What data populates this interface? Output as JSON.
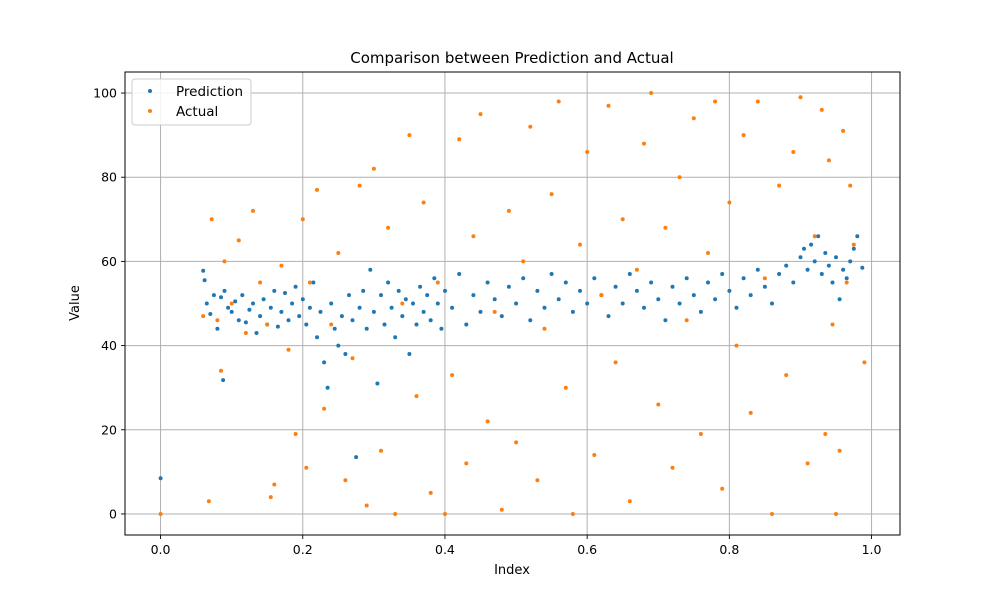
{
  "chart_data": {
    "type": "scatter",
    "title": "Comparison between Prediction and Actual",
    "xlabel": "Index",
    "ylabel": "Value",
    "xlim": [
      -0.05,
      1.04
    ],
    "ylim": [
      -5,
      105
    ],
    "xticks": [
      0.0,
      0.2,
      0.4,
      0.6,
      0.8,
      1.0
    ],
    "xtick_labels": [
      "0.0",
      "0.2",
      "0.4",
      "0.6",
      "0.8",
      "1.0"
    ],
    "yticks": [
      0,
      20,
      40,
      60,
      80,
      100
    ],
    "ytick_labels": [
      "0",
      "20",
      "40",
      "60",
      "80",
      "100"
    ],
    "grid": true,
    "legend": {
      "placement": "upper-left"
    },
    "series": [
      {
        "name": "Prediction",
        "color": "#1f77b4",
        "points": [
          [
            0.0,
            8.5
          ],
          [
            0.06,
            57.8
          ],
          [
            0.062,
            55.5
          ],
          [
            0.065,
            50.0
          ],
          [
            0.07,
            47.5
          ],
          [
            0.075,
            52.0
          ],
          [
            0.08,
            44.0
          ],
          [
            0.085,
            51.5
          ],
          [
            0.088,
            31.8
          ],
          [
            0.09,
            53.0
          ],
          [
            0.095,
            49.0
          ],
          [
            0.1,
            48.0
          ],
          [
            0.105,
            50.5
          ],
          [
            0.11,
            46.0
          ],
          [
            0.115,
            52.0
          ],
          [
            0.12,
            45.5
          ],
          [
            0.125,
            48.5
          ],
          [
            0.13,
            50.0
          ],
          [
            0.135,
            43.0
          ],
          [
            0.14,
            47.0
          ],
          [
            0.145,
            51.0
          ],
          [
            0.15,
            45.0
          ],
          [
            0.155,
            49.0
          ],
          [
            0.16,
            53.0
          ],
          [
            0.165,
            44.5
          ],
          [
            0.17,
            48.0
          ],
          [
            0.175,
            52.5
          ],
          [
            0.18,
            46.0
          ],
          [
            0.185,
            50.0
          ],
          [
            0.19,
            54.0
          ],
          [
            0.195,
            47.0
          ],
          [
            0.2,
            51.0
          ],
          [
            0.205,
            45.0
          ],
          [
            0.21,
            49.0
          ],
          [
            0.215,
            55.0
          ],
          [
            0.22,
            42.0
          ],
          [
            0.225,
            48.0
          ],
          [
            0.23,
            36.0
          ],
          [
            0.235,
            30.0
          ],
          [
            0.24,
            50.0
          ],
          [
            0.245,
            44.0
          ],
          [
            0.25,
            40.0
          ],
          [
            0.255,
            47.0
          ],
          [
            0.26,
            38.0
          ],
          [
            0.265,
            52.0
          ],
          [
            0.27,
            46.0
          ],
          [
            0.275,
            13.5
          ],
          [
            0.28,
            49.0
          ],
          [
            0.285,
            53.0
          ],
          [
            0.29,
            44.0
          ],
          [
            0.295,
            58.0
          ],
          [
            0.3,
            48.0
          ],
          [
            0.305,
            31.0
          ],
          [
            0.31,
            52.0
          ],
          [
            0.315,
            45.0
          ],
          [
            0.32,
            55.0
          ],
          [
            0.325,
            49.0
          ],
          [
            0.33,
            42.0
          ],
          [
            0.335,
            53.0
          ],
          [
            0.34,
            47.0
          ],
          [
            0.345,
            51.0
          ],
          [
            0.35,
            38.0
          ],
          [
            0.355,
            50.0
          ],
          [
            0.36,
            45.0
          ],
          [
            0.365,
            54.0
          ],
          [
            0.37,
            48.0
          ],
          [
            0.375,
            52.0
          ],
          [
            0.38,
            46.0
          ],
          [
            0.385,
            56.0
          ],
          [
            0.39,
            50.0
          ],
          [
            0.395,
            44.0
          ],
          [
            0.4,
            53.0
          ],
          [
            0.41,
            49.0
          ],
          [
            0.42,
            57.0
          ],
          [
            0.43,
            45.0
          ],
          [
            0.44,
            52.0
          ],
          [
            0.45,
            48.0
          ],
          [
            0.46,
            55.0
          ],
          [
            0.47,
            51.0
          ],
          [
            0.48,
            47.0
          ],
          [
            0.49,
            54.0
          ],
          [
            0.5,
            50.0
          ],
          [
            0.51,
            56.0
          ],
          [
            0.52,
            46.0
          ],
          [
            0.53,
            53.0
          ],
          [
            0.54,
            49.0
          ],
          [
            0.55,
            57.0
          ],
          [
            0.56,
            51.0
          ],
          [
            0.57,
            55.0
          ],
          [
            0.58,
            48.0
          ],
          [
            0.59,
            53.0
          ],
          [
            0.6,
            50.0
          ],
          [
            0.61,
            56.0
          ],
          [
            0.62,
            52.0
          ],
          [
            0.63,
            47.0
          ],
          [
            0.64,
            54.0
          ],
          [
            0.65,
            50.0
          ],
          [
            0.66,
            57.0
          ],
          [
            0.67,
            53.0
          ],
          [
            0.68,
            49.0
          ],
          [
            0.69,
            55.0
          ],
          [
            0.7,
            51.0
          ],
          [
            0.71,
            46.0
          ],
          [
            0.72,
            54.0
          ],
          [
            0.73,
            50.0
          ],
          [
            0.74,
            56.0
          ],
          [
            0.75,
            52.0
          ],
          [
            0.76,
            48.0
          ],
          [
            0.77,
            55.0
          ],
          [
            0.78,
            51.0
          ],
          [
            0.79,
            57.0
          ],
          [
            0.8,
            53.0
          ],
          [
            0.81,
            49.0
          ],
          [
            0.82,
            56.0
          ],
          [
            0.83,
            52.0
          ],
          [
            0.84,
            58.0
          ],
          [
            0.85,
            54.0
          ],
          [
            0.86,
            50.0
          ],
          [
            0.87,
            57.0
          ],
          [
            0.88,
            59.0
          ],
          [
            0.89,
            55.0
          ],
          [
            0.9,
            61.0
          ],
          [
            0.905,
            63.0
          ],
          [
            0.91,
            58.0
          ],
          [
            0.915,
            64.0
          ],
          [
            0.92,
            60.0
          ],
          [
            0.925,
            66.0
          ],
          [
            0.93,
            57.0
          ],
          [
            0.935,
            62.0
          ],
          [
            0.94,
            59.0
          ],
          [
            0.945,
            55.0
          ],
          [
            0.95,
            61.0
          ],
          [
            0.955,
            51.0
          ],
          [
            0.96,
            58.0
          ],
          [
            0.965,
            56.0
          ],
          [
            0.97,
            60.0
          ],
          [
            0.975,
            63.0
          ],
          [
            0.98,
            66.0
          ],
          [
            0.987,
            58.5
          ]
        ]
      },
      {
        "name": "Actual",
        "color": "#ff7f0e",
        "points": [
          [
            0.0,
            0.0
          ],
          [
            0.06,
            47.0
          ],
          [
            0.068,
            3.0
          ],
          [
            0.072,
            70.0
          ],
          [
            0.08,
            46.0
          ],
          [
            0.085,
            34.0
          ],
          [
            0.09,
            60.0
          ],
          [
            0.1,
            50.0
          ],
          [
            0.11,
            65.0
          ],
          [
            0.12,
            43.0
          ],
          [
            0.13,
            72.0
          ],
          [
            0.14,
            55.0
          ],
          [
            0.15,
            45.0
          ],
          [
            0.155,
            4.0
          ],
          [
            0.16,
            7.0
          ],
          [
            0.17,
            59.0
          ],
          [
            0.18,
            39.0
          ],
          [
            0.19,
            19.0
          ],
          [
            0.2,
            70.0
          ],
          [
            0.205,
            11.0
          ],
          [
            0.21,
            55.0
          ],
          [
            0.22,
            77.0
          ],
          [
            0.23,
            25.0
          ],
          [
            0.24,
            45.0
          ],
          [
            0.25,
            62.0
          ],
          [
            0.26,
            8.0
          ],
          [
            0.27,
            37.0
          ],
          [
            0.28,
            78.0
          ],
          [
            0.29,
            2.0
          ],
          [
            0.3,
            82.0
          ],
          [
            0.31,
            15.0
          ],
          [
            0.32,
            68.0
          ],
          [
            0.33,
            0.0
          ],
          [
            0.34,
            50.0
          ],
          [
            0.35,
            90.0
          ],
          [
            0.36,
            28.0
          ],
          [
            0.37,
            74.0
          ],
          [
            0.38,
            5.0
          ],
          [
            0.39,
            55.0
          ],
          [
            0.4,
            0.0
          ],
          [
            0.41,
            33.0
          ],
          [
            0.42,
            89.0
          ],
          [
            0.43,
            12.0
          ],
          [
            0.44,
            66.0
          ],
          [
            0.45,
            95.0
          ],
          [
            0.46,
            22.0
          ],
          [
            0.47,
            48.0
          ],
          [
            0.48,
            1.0
          ],
          [
            0.49,
            72.0
          ],
          [
            0.5,
            17.0
          ],
          [
            0.51,
            60.0
          ],
          [
            0.52,
            92.0
          ],
          [
            0.53,
            8.0
          ],
          [
            0.54,
            44.0
          ],
          [
            0.55,
            76.0
          ],
          [
            0.56,
            98.0
          ],
          [
            0.57,
            30.0
          ],
          [
            0.58,
            0.0
          ],
          [
            0.59,
            64.0
          ],
          [
            0.6,
            86.0
          ],
          [
            0.61,
            14.0
          ],
          [
            0.62,
            52.0
          ],
          [
            0.63,
            97.0
          ],
          [
            0.64,
            36.0
          ],
          [
            0.65,
            70.0
          ],
          [
            0.66,
            3.0
          ],
          [
            0.67,
            58.0
          ],
          [
            0.68,
            88.0
          ],
          [
            0.69,
            100.0
          ],
          [
            0.7,
            26.0
          ],
          [
            0.71,
            68.0
          ],
          [
            0.72,
            11.0
          ],
          [
            0.73,
            80.0
          ],
          [
            0.74,
            46.0
          ],
          [
            0.75,
            94.0
          ],
          [
            0.76,
            19.0
          ],
          [
            0.77,
            62.0
          ],
          [
            0.78,
            98.0
          ],
          [
            0.79,
            6.0
          ],
          [
            0.8,
            74.0
          ],
          [
            0.81,
            40.0
          ],
          [
            0.82,
            90.0
          ],
          [
            0.83,
            24.0
          ],
          [
            0.84,
            98.0
          ],
          [
            0.85,
            56.0
          ],
          [
            0.86,
            0.0
          ],
          [
            0.87,
            78.0
          ],
          [
            0.88,
            33.0
          ],
          [
            0.89,
            86.0
          ],
          [
            0.9,
            99.0
          ],
          [
            0.91,
            12.0
          ],
          [
            0.92,
            66.0
          ],
          [
            0.93,
            96.0
          ],
          [
            0.935,
            19.0
          ],
          [
            0.94,
            84.0
          ],
          [
            0.945,
            45.0
          ],
          [
            0.95,
            0.0
          ],
          [
            0.955,
            15.0
          ],
          [
            0.96,
            91.0
          ],
          [
            0.965,
            55.0
          ],
          [
            0.97,
            78.0
          ],
          [
            0.975,
            64.0
          ],
          [
            0.99,
            36.0
          ]
        ]
      }
    ]
  }
}
